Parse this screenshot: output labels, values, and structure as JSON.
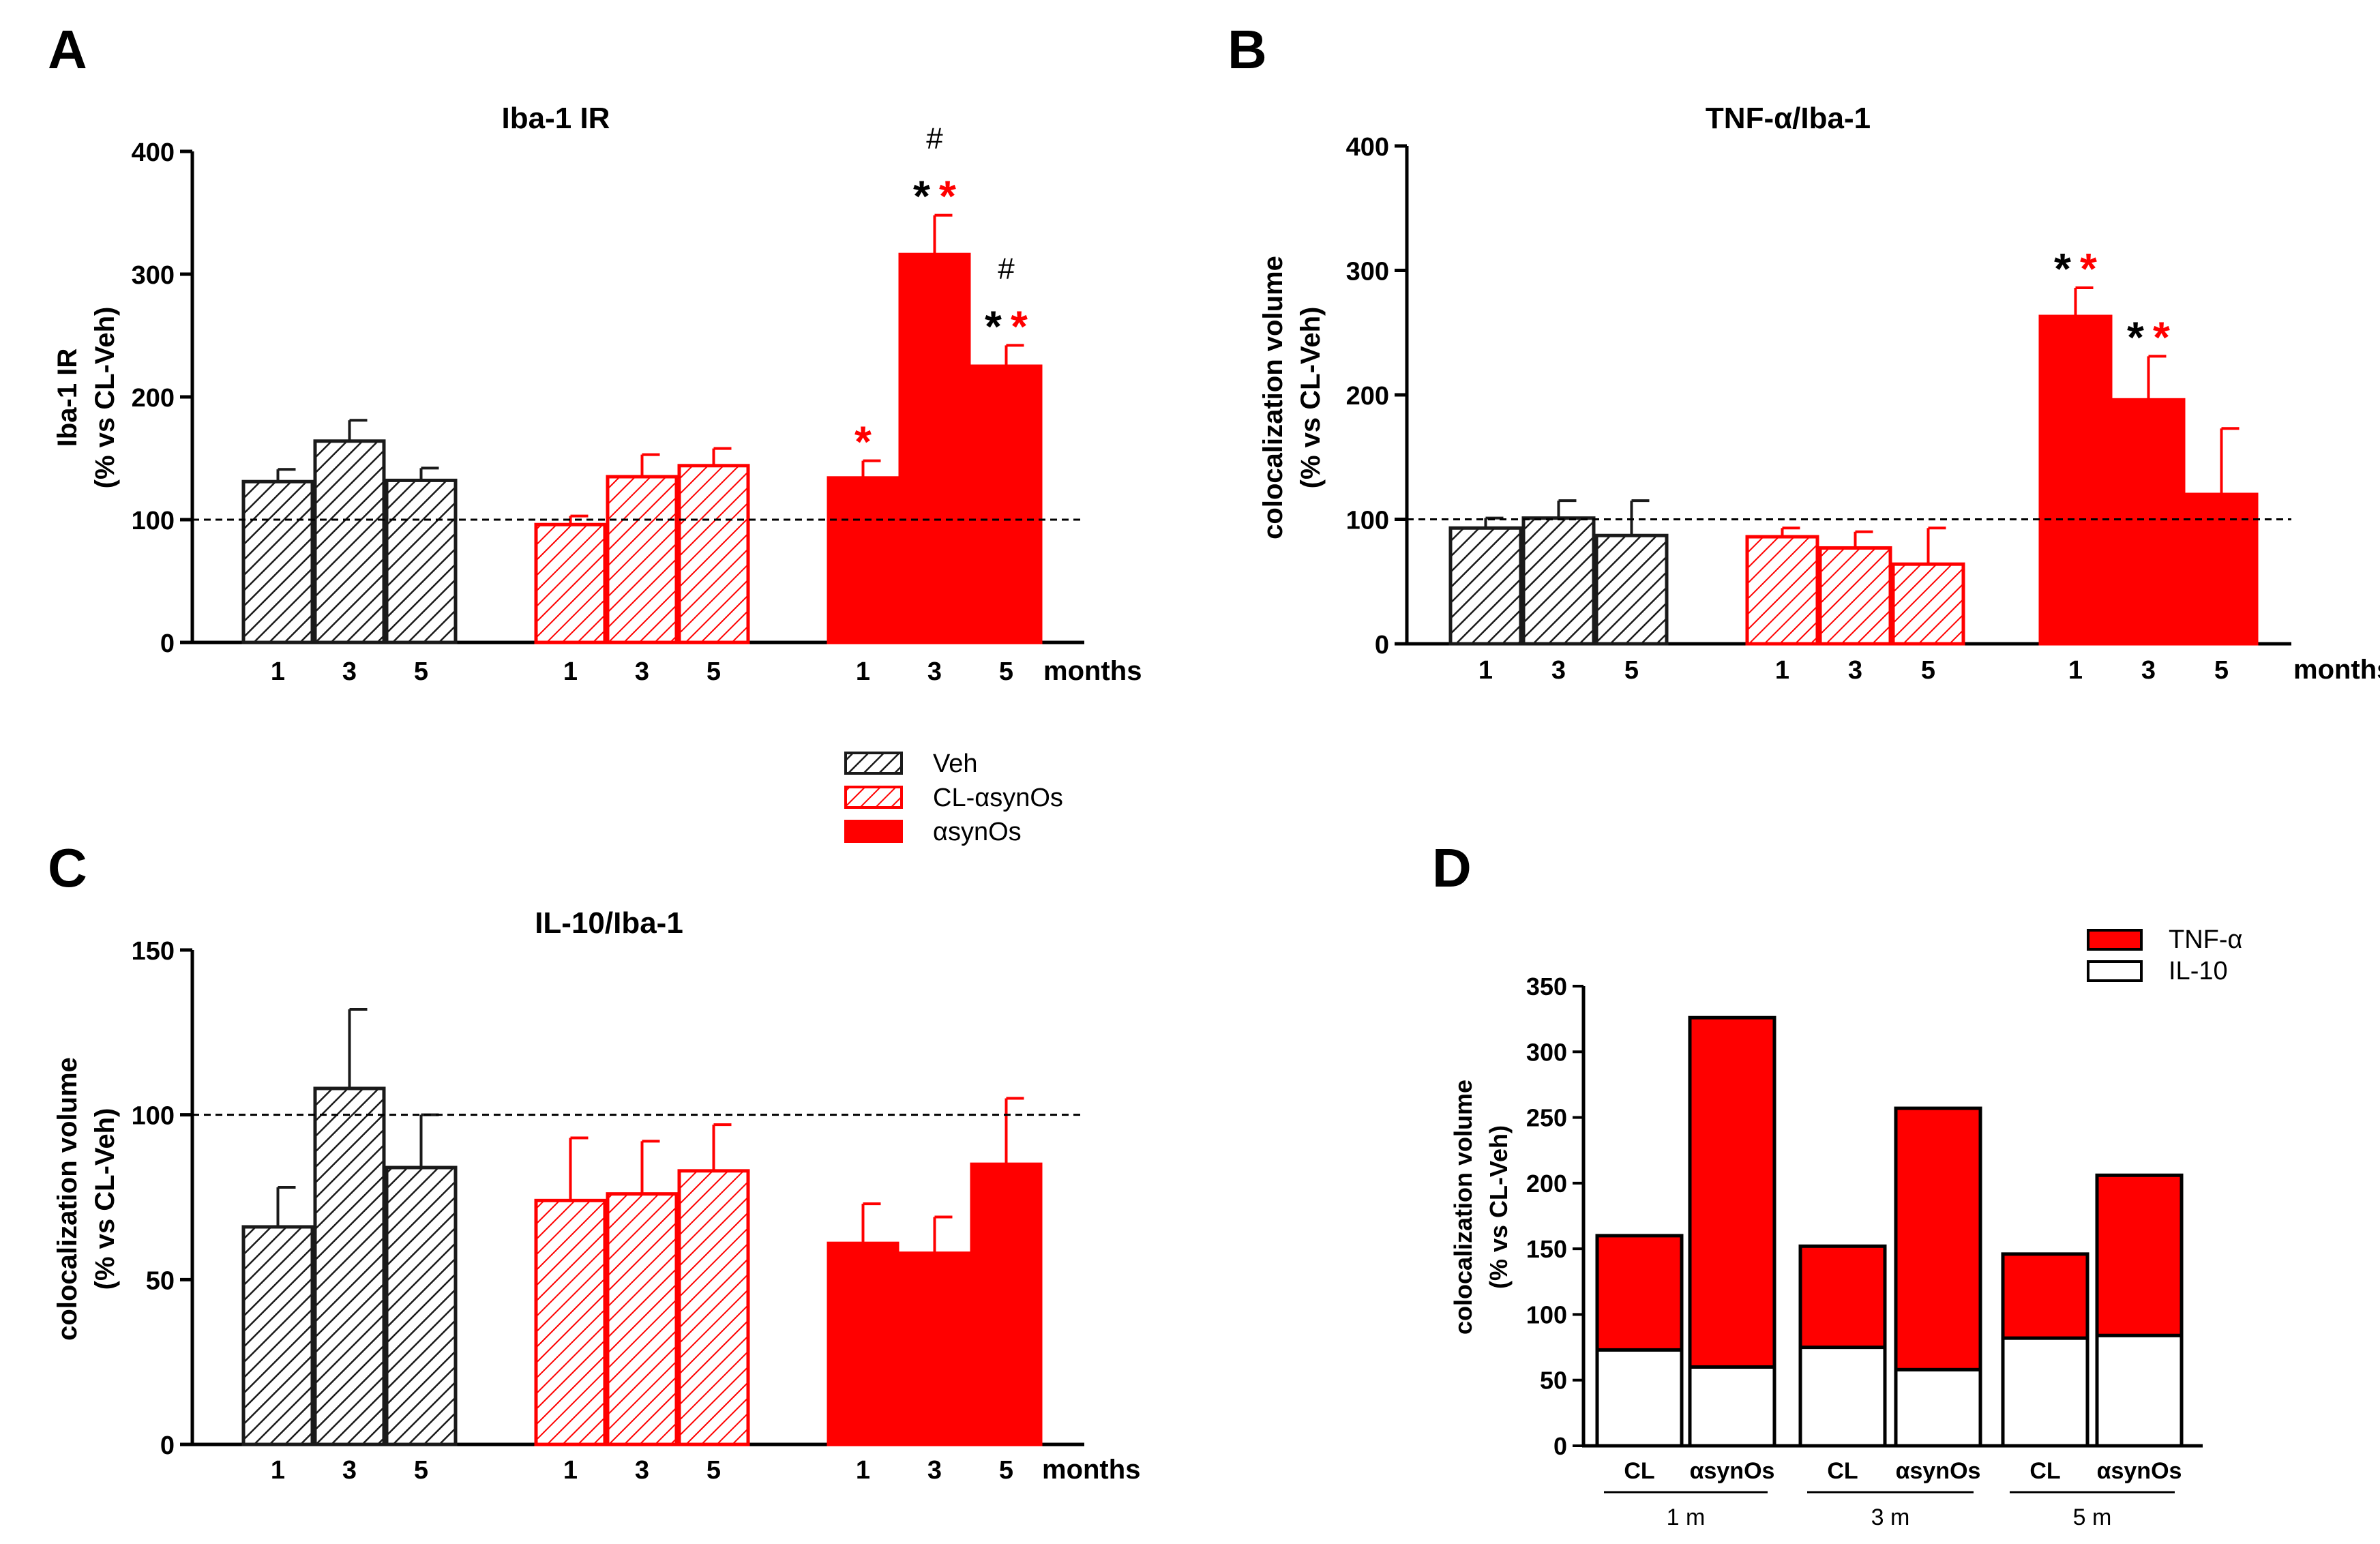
{
  "colors": {
    "veh": "#1a1a1a",
    "cl": "#ff0000",
    "asyn": "#ff0000",
    "tnf": "#ff0000",
    "il10": "#ffffff",
    "axis": "#000000"
  },
  "legend_groups": {
    "items": [
      {
        "label": "Veh",
        "style": "hatch-black"
      },
      {
        "label": "CL-αsynOs",
        "style": "hatch-red"
      },
      {
        "label": "αsynOs",
        "style": "solid-red"
      }
    ]
  },
  "chart_data": [
    {
      "id": "A",
      "panel_letter": "A",
      "type": "bar",
      "title": "Iba-1 IR",
      "ylabel_line1": "Iba-1 IR",
      "ylabel_line2": "(% vs CL-Veh)",
      "xunit": "months",
      "ylim": [
        0,
        400
      ],
      "yticks": [
        0,
        100,
        200,
        300,
        400
      ],
      "reference_line": 100,
      "groups": [
        {
          "name": "Veh",
          "style": "hatch-black",
          "categories": [
            "1",
            "3",
            "5"
          ],
          "values": [
            131,
            164,
            132
          ],
          "errors": [
            10,
            17,
            10
          ]
        },
        {
          "name": "CL-αsynOs",
          "style": "hatch-red",
          "categories": [
            "1",
            "3",
            "5"
          ],
          "values": [
            96,
            135,
            144
          ],
          "errors": [
            7,
            18,
            14
          ]
        },
        {
          "name": "αsynOs",
          "style": "solid-red",
          "categories": [
            "1",
            "3",
            "5"
          ],
          "values": [
            134,
            316,
            225
          ],
          "errors": [
            14,
            32,
            17
          ]
        }
      ],
      "annotations": [
        {
          "group": 2,
          "bar": 0,
          "marks": [
            [
              {
                "t": "*",
                "c": "red"
              }
            ]
          ]
        },
        {
          "group": 2,
          "bar": 1,
          "marks": [
            [
              {
                "t": "*",
                "c": "black"
              },
              {
                "t": "*",
                "c": "red"
              }
            ],
            [
              {
                "t": "#",
                "c": "black"
              }
            ]
          ]
        },
        {
          "group": 2,
          "bar": 2,
          "marks": [
            [
              {
                "t": "*",
                "c": "black"
              },
              {
                "t": "*",
                "c": "red"
              }
            ],
            [
              {
                "t": "#",
                "c": "black"
              }
            ]
          ]
        }
      ]
    },
    {
      "id": "B",
      "panel_letter": "B",
      "type": "bar",
      "title": "TNF-α/Iba-1",
      "ylabel_line1": "colocalization volume",
      "ylabel_line2": "(% vs CL-Veh)",
      "xunit": "months",
      "ylim": [
        0,
        400
      ],
      "yticks": [
        0,
        100,
        200,
        300,
        400
      ],
      "reference_line": 100,
      "groups": [
        {
          "name": "Veh",
          "style": "hatch-black",
          "categories": [
            "1",
            "3",
            "5"
          ],
          "values": [
            93,
            101,
            87
          ],
          "errors": [
            8,
            14,
            28
          ]
        },
        {
          "name": "CL-αsynOs",
          "style": "hatch-red",
          "categories": [
            "1",
            "3",
            "5"
          ],
          "values": [
            86,
            77,
            64
          ],
          "errors": [
            7,
            13,
            29
          ]
        },
        {
          "name": "αsynOs",
          "style": "solid-red",
          "categories": [
            "1",
            "3",
            "5"
          ],
          "values": [
            263,
            196,
            120
          ],
          "errors": [
            23,
            35,
            53
          ]
        }
      ],
      "annotations": [
        {
          "group": 2,
          "bar": 0,
          "marks": [
            [
              {
                "t": "*",
                "c": "black"
              },
              {
                "t": "*",
                "c": "red"
              }
            ]
          ]
        },
        {
          "group": 2,
          "bar": 1,
          "marks": [
            [
              {
                "t": "*",
                "c": "black"
              },
              {
                "t": "*",
                "c": "red"
              }
            ]
          ]
        }
      ]
    },
    {
      "id": "C",
      "panel_letter": "C",
      "type": "bar",
      "title": "IL-10/Iba-1",
      "ylabel_line1": "colocalization volume",
      "ylabel_line2": "(% vs CL-Veh)",
      "xunit": "months",
      "ylim": [
        0,
        150
      ],
      "yticks": [
        0,
        50,
        100,
        150
      ],
      "reference_line": 100,
      "groups": [
        {
          "name": "Veh",
          "style": "hatch-black",
          "categories": [
            "1",
            "3",
            "5"
          ],
          "values": [
            66,
            108,
            84
          ],
          "errors": [
            12,
            24,
            16
          ]
        },
        {
          "name": "CL-αsynOs",
          "style": "hatch-red",
          "categories": [
            "1",
            "3",
            "5"
          ],
          "values": [
            74,
            76,
            83
          ],
          "errors": [
            19,
            16,
            14
          ]
        },
        {
          "name": "αsynOs",
          "style": "solid-red",
          "categories": [
            "1",
            "3",
            "5"
          ],
          "values": [
            61,
            58,
            85
          ],
          "errors": [
            12,
            11,
            20
          ]
        }
      ],
      "annotations": []
    },
    {
      "id": "D",
      "panel_letter": "D",
      "type": "stacked-bar",
      "title": "",
      "ylabel_line1": "colocalization volume",
      "ylabel_line2": "(% vs CL-Veh)",
      "ylim": [
        0,
        350
      ],
      "yticks": [
        0,
        50,
        100,
        150,
        200,
        250,
        300,
        350
      ],
      "categories": [
        "CL",
        "αsynOs",
        "CL",
        "αsynOs",
        "CL",
        "αsynOs"
      ],
      "group_labels": [
        "1 m",
        "3 m",
        "5 m"
      ],
      "series": [
        {
          "name": "IL-10",
          "values": [
            73,
            60,
            75,
            58,
            82,
            84
          ]
        },
        {
          "name": "TNF-α",
          "values": [
            87,
            266,
            77,
            199,
            64,
            122
          ]
        }
      ],
      "legend": [
        "TNF-α",
        "IL-10"
      ]
    }
  ]
}
